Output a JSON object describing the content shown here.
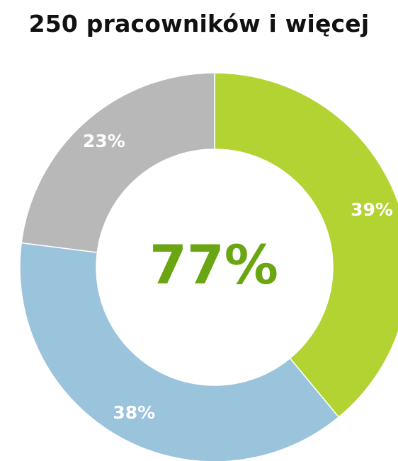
{
  "chart_data": {
    "type": "pie",
    "title": "250 pracowników i więcej",
    "center_label": "77%",
    "center_color": "#6aa512",
    "slices": [
      {
        "label": "39%",
        "value": 39,
        "color": "#b3d333"
      },
      {
        "label": "38%",
        "value": 38,
        "color": "#9ac3dc"
      },
      {
        "label": "23%",
        "value": 23,
        "color": "#b8b8b8"
      }
    ]
  }
}
